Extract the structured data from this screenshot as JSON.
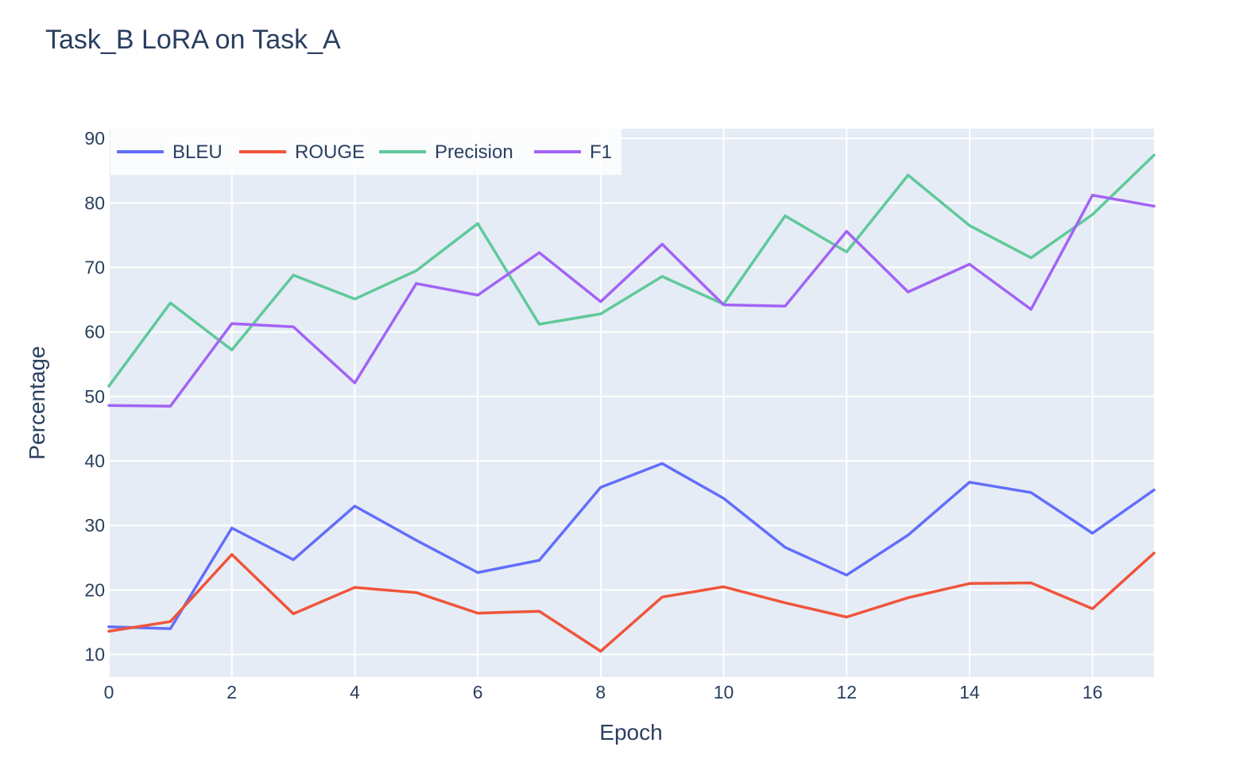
{
  "chart_data": {
    "type": "line",
    "title": "Task_B LoRA on Task_A",
    "xlabel": "Epoch",
    "ylabel": "Percentage",
    "x": [
      0,
      1,
      2,
      3,
      4,
      5,
      6,
      7,
      8,
      9,
      10,
      11,
      12,
      13,
      14,
      15,
      16,
      17
    ],
    "xlim": [
      0,
      17
    ],
    "ylim": [
      6.5,
      91.5
    ],
    "xticks": [
      "0",
      "2",
      "4",
      "6",
      "8",
      "10",
      "12",
      "14",
      "16"
    ],
    "yticks": [
      "10",
      "20",
      "30",
      "40",
      "50",
      "60",
      "70",
      "80",
      "90"
    ],
    "grid": true,
    "legend_position": "top-left",
    "background": "#e5ecf6",
    "series": [
      {
        "name": "BLEU",
        "color": "#636efa",
        "values": [
          14.3,
          14.0,
          29.6,
          24.7,
          33.0,
          27.7,
          22.7,
          24.6,
          35.9,
          39.6,
          34.2,
          26.6,
          22.3,
          28.5,
          36.7,
          35.1,
          28.8,
          35.5
        ]
      },
      {
        "name": "ROUGE",
        "color": "#ef553b",
        "values": [
          13.6,
          15.1,
          25.5,
          16.3,
          20.4,
          19.6,
          16.4,
          16.7,
          10.5,
          18.9,
          20.5,
          18.0,
          15.8,
          18.8,
          21.0,
          21.1,
          17.1,
          25.7
        ]
      },
      {
        "name": "Precision",
        "color": "#5fc99a",
        "values": [
          51.6,
          64.5,
          57.2,
          68.8,
          65.1,
          69.5,
          76.8,
          61.2,
          62.8,
          68.6,
          64.3,
          78.0,
          72.4,
          84.3,
          76.5,
          71.5,
          78.2,
          87.4
        ]
      },
      {
        "name": "F1",
        "color": "#a363f5",
        "values": [
          48.6,
          48.5,
          61.3,
          60.8,
          52.1,
          67.5,
          65.7,
          72.3,
          64.7,
          73.6,
          64.2,
          64.0,
          75.6,
          66.2,
          70.5,
          63.5,
          81.2,
          79.5
        ]
      }
    ]
  }
}
